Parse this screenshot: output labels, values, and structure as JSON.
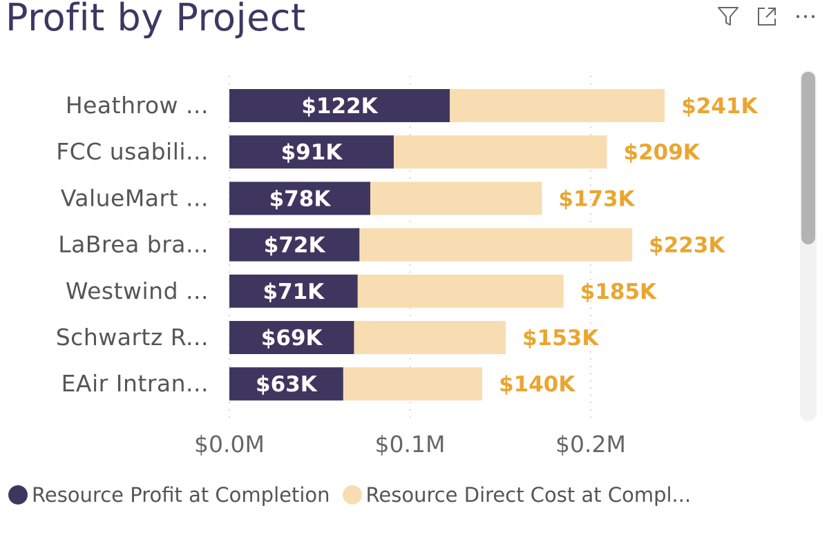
{
  "header": {
    "title": "Profit by Project",
    "icons": [
      "filter-icon",
      "focus-mode-icon",
      "more-options-icon"
    ]
  },
  "colors": {
    "profit": "#3f3660",
    "cost": "#f7ddb1",
    "cost_label": "#e9a62f",
    "axis_label": "#666666",
    "category_label": "#555555"
  },
  "chart_data": {
    "type": "bar",
    "orientation": "horizontal",
    "stacked": false,
    "title": "Profit by Project",
    "categories": [
      "Heathrow ...",
      "FCC usabili...",
      "ValueMart ...",
      "LaBrea bra...",
      "Westwind ...",
      "Schwartz R...",
      "EAir Intran..."
    ],
    "series": [
      {
        "name": "Resource Profit at Completion",
        "values": [
          122,
          91,
          78,
          72,
          71,
          69,
          63
        ],
        "labels": [
          "$122K",
          "$91K",
          "$78K",
          "$72K",
          "$71K",
          "$69K",
          "$63K"
        ]
      },
      {
        "name": "Resource Direct Cost at Compl...",
        "values": [
          241,
          209,
          173,
          223,
          185,
          153,
          140
        ],
        "labels": [
          "$241K",
          "$209K",
          "$173K",
          "$223K",
          "$185K",
          "$153K",
          "$140K"
        ]
      }
    ],
    "unit": "thousands USD",
    "xlim": [
      0,
      300
    ],
    "xticks": [
      0,
      100,
      200
    ],
    "xtick_labels": [
      "$0.0M",
      "$0.1M",
      "$0.2M"
    ],
    "grid": "vertical-dotted",
    "legend": "bottom"
  }
}
